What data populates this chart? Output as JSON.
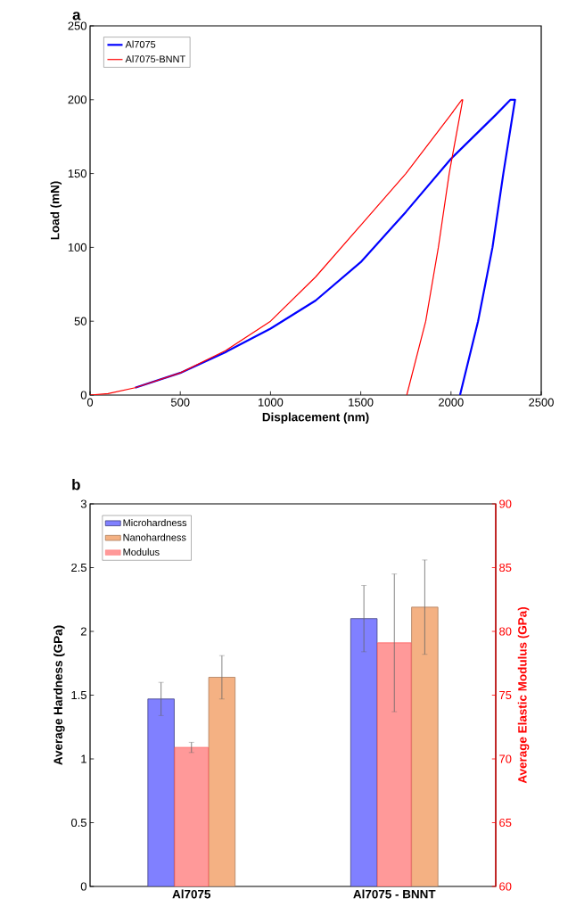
{
  "chart_data": [
    {
      "type": "line",
      "xlabel": "Displacement (nm)",
      "ylabel": "Load (mN)",
      "annotations": [
        "a"
      ],
      "xlim": [
        0,
        2500
      ],
      "ylim": [
        0,
        250
      ],
      "xticks": [
        0,
        500,
        1000,
        1500,
        2000,
        2500
      ],
      "yticks": [
        0,
        50,
        100,
        150,
        200,
        250
      ],
      "legend": "top left",
      "line_style": "solid",
      "series": [
        {
          "name": "Al7075",
          "color": "#0000ff",
          "x": [
            250,
            500,
            750,
            1000,
            1250,
            1500,
            1750,
            2000,
            2250,
            2330,
            2355,
            2290,
            2230,
            2150,
            2050
          ],
          "values": [
            5,
            15,
            29,
            45,
            64,
            90,
            124,
            160,
            190,
            200,
            200,
            150,
            100,
            50,
            0
          ]
        },
        {
          "name": "Al7075-BNNT",
          "color": "#ff0000",
          "x": [
            0,
            100,
            250,
            500,
            750,
            1000,
            1250,
            1500,
            1750,
            2000,
            2060,
            2065,
            1990,
            1930,
            1860,
            1755
          ],
          "values": [
            0,
            1,
            5,
            15,
            30,
            50,
            80,
            115,
            150,
            190,
            200,
            200,
            150,
            100,
            50,
            0
          ]
        }
      ]
    },
    {
      "type": "bar",
      "ylabel": "Average Hardness (GPa)",
      "y2label": "Average Elastic Modulus (GPa)",
      "annotations": [
        "b"
      ],
      "categories": [
        "Al7075",
        "Al7075 - BNNT"
      ],
      "ylim": [
        0,
        3
      ],
      "yticks": [
        0,
        0.5,
        1,
        1.5,
        2,
        2.5,
        3
      ],
      "y2lim": [
        60,
        90
      ],
      "y2ticks": [
        60,
        65,
        70,
        75,
        80,
        85,
        90
      ],
      "legend": "top left",
      "series": [
        {
          "name": "Microhardness",
          "color": "#8080ff",
          "values": [
            1.47,
            2.1
          ],
          "errors": [
            0.13,
            0.26
          ]
        },
        {
          "name": "Nanohardness",
          "color": "#f4b183",
          "values": [
            1.64,
            2.19
          ],
          "errors": [
            0.17,
            0.37
          ]
        },
        {
          "name": "Modulus",
          "color": "#ff9999",
          "axis": "y2",
          "values": [
            70.9,
            79.1
          ],
          "errors": [
            0.4,
            5.4
          ]
        }
      ]
    }
  ]
}
